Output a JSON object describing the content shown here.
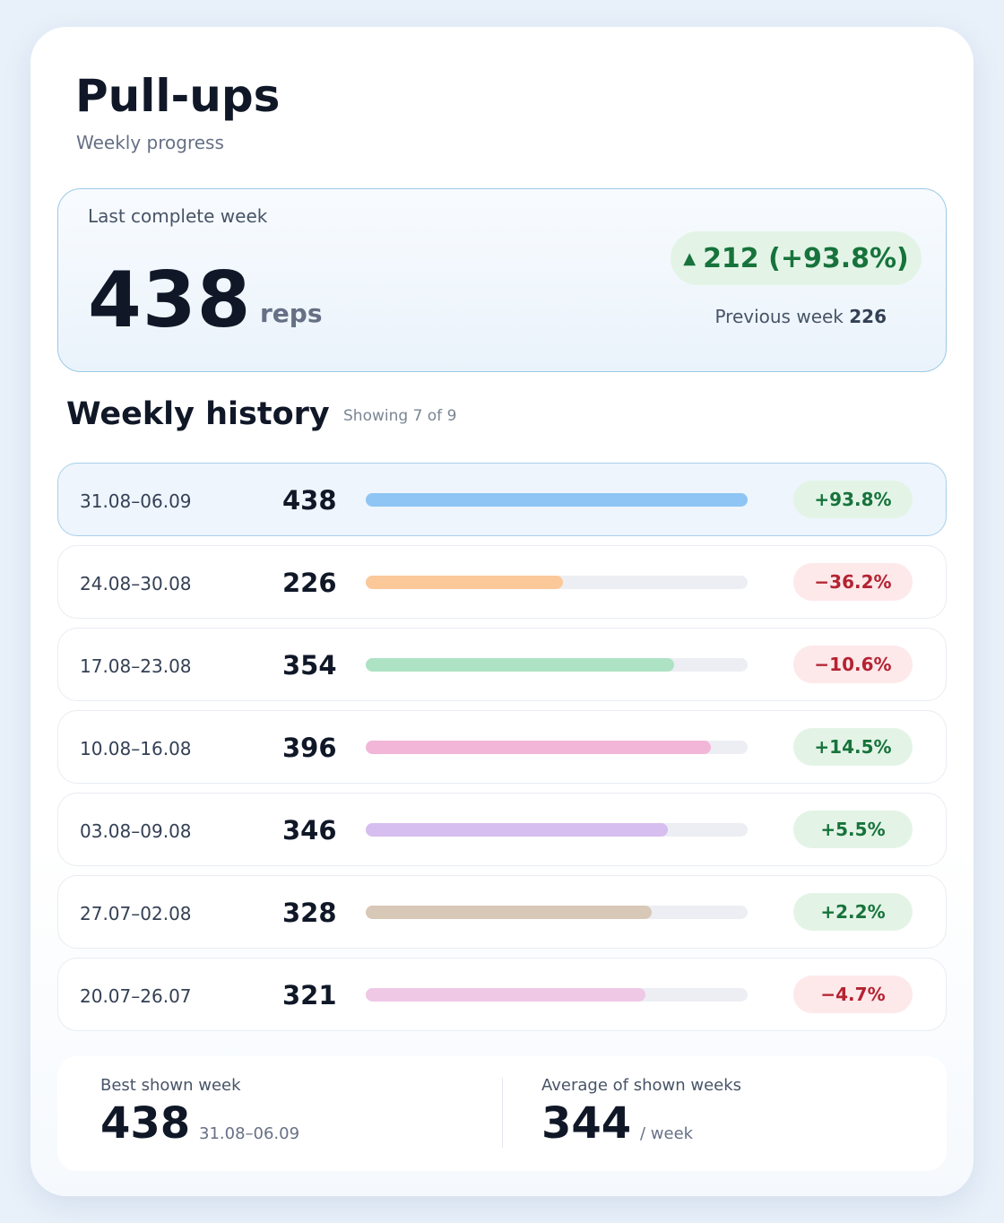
{
  "header": {
    "title": "Pull-ups",
    "subtitle": "Weekly progress"
  },
  "summary": {
    "label": "Last complete week",
    "value": "438",
    "unit": "reps",
    "delta_icon": "triangle-up-icon",
    "delta_text": "212 (+93.8%)",
    "previous_label": "Previous week",
    "previous_value": "226"
  },
  "history": {
    "title": "Weekly history",
    "count_text": "Showing 7 of 9",
    "max_value": 438,
    "weeks": [
      {
        "date": "31.08–06.09",
        "value": "438",
        "reps": 438,
        "change": "+93.8%",
        "trend": "up",
        "color": "#8ec5f4",
        "current": true
      },
      {
        "date": "24.08–30.08",
        "value": "226",
        "reps": 226,
        "change": "−36.2%",
        "trend": "down",
        "color": "#fbc89a",
        "current": false
      },
      {
        "date": "17.08–23.08",
        "value": "354",
        "reps": 354,
        "change": "−10.6%",
        "trend": "down",
        "color": "#ade3c4",
        "current": false
      },
      {
        "date": "10.08–16.08",
        "value": "396",
        "reps": 396,
        "change": "+14.5%",
        "trend": "up",
        "color": "#f1b6d8",
        "current": false
      },
      {
        "date": "03.08–09.08",
        "value": "346",
        "reps": 346,
        "change": "+5.5%",
        "trend": "up",
        "color": "#d6bef0",
        "current": false
      },
      {
        "date": "27.07–02.08",
        "value": "328",
        "reps": 328,
        "change": "+2.2%",
        "trend": "up",
        "color": "#d8c8b8",
        "current": false
      },
      {
        "date": "20.07–26.07",
        "value": "321",
        "reps": 321,
        "change": "−4.7%",
        "trend": "down",
        "color": "#efc8e6",
        "current": false
      }
    ]
  },
  "footer": {
    "best_label": "Best shown week",
    "best_value": "438",
    "best_date": "31.08–06.09",
    "avg_label": "Average of shown weeks",
    "avg_value": "344",
    "avg_unit": "/ week"
  },
  "colors": {
    "positive": "#17733b",
    "negative": "#b42331",
    "accent_border": "#9cc9e6"
  }
}
